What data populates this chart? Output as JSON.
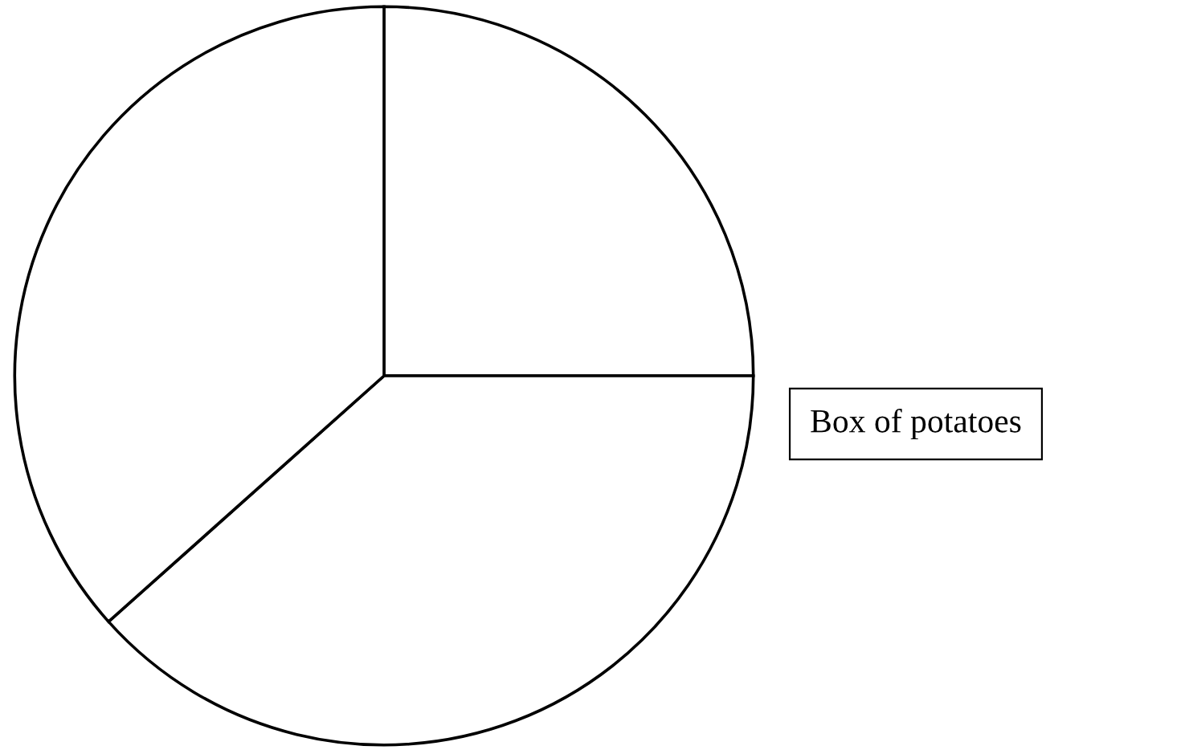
{
  "chart_data": {
    "type": "pie",
    "categories": [
      null,
      null,
      null
    ],
    "values": [
      25,
      38.4,
      36.6
    ],
    "colors": [
      "#ffffff",
      "#ffffff",
      "#ffffff"
    ],
    "annotations": [
      "Box of potatoes"
    ]
  }
}
